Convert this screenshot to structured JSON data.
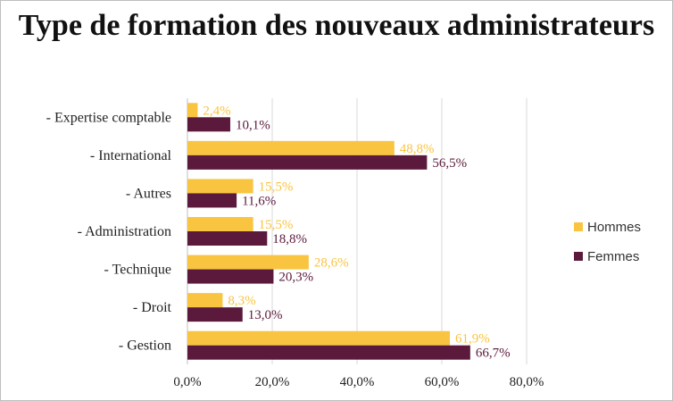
{
  "chart_data": {
    "type": "bar",
    "orientation": "horizontal",
    "title": "Type de formation des nouveaux administrateurs",
    "categories": [
      "- Expertise comptable",
      "- International",
      "- Autres",
      "- Administration",
      "- Technique",
      "- Droit",
      "- Gestion"
    ],
    "series": [
      {
        "name": "Hommes",
        "color": "#f9c440",
        "values": [
          2.4,
          48.8,
          15.5,
          15.5,
          28.6,
          8.3,
          61.9
        ],
        "labels": [
          "2,4%",
          "48,8%",
          "15,5%",
          "15,5%",
          "28,6%",
          "8,3%",
          "61,9%"
        ]
      },
      {
        "name": "Femmes",
        "color": "#5b1a3c",
        "values": [
          10.1,
          56.5,
          11.6,
          18.8,
          20.3,
          13.0,
          66.7
        ],
        "labels": [
          "10,1%",
          "56,5%",
          "11,6%",
          "18,8%",
          "20,3%",
          "13,0%",
          "66,7%"
        ]
      }
    ],
    "xlim": [
      0,
      80
    ],
    "xticks": [
      0,
      20,
      40,
      60,
      80
    ],
    "xtick_labels": [
      "0,0%",
      "20,0%",
      "40,0%",
      "60,0%",
      "80,0%"
    ],
    "grid": true,
    "legend_position": "right"
  }
}
